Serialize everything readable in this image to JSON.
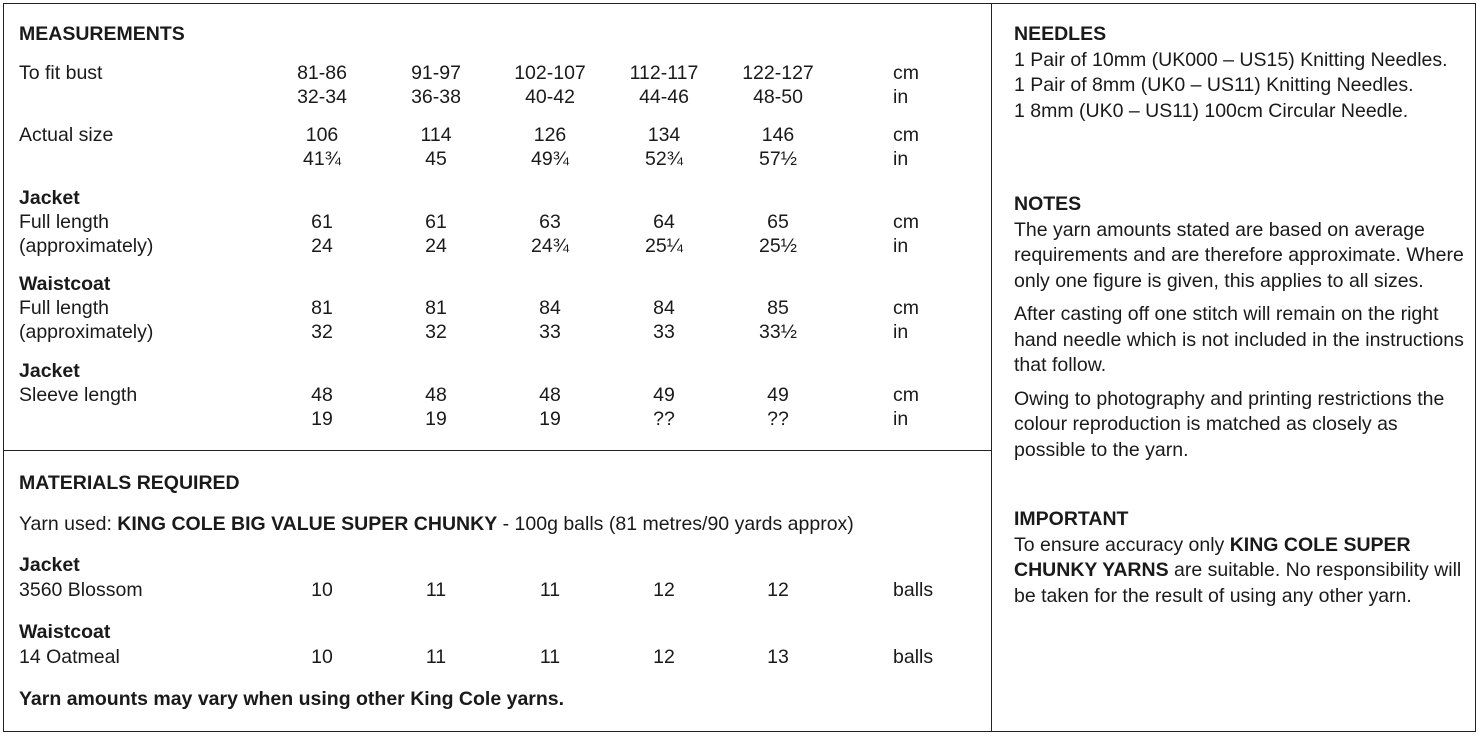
{
  "measurements": {
    "title": "MEASUREMENTS",
    "bust_label": "To fit bust",
    "bust_cm": [
      "81-86",
      "91-97",
      "102-107",
      "112-117",
      "122-127"
    ],
    "bust_in": [
      "32-34",
      "36-38",
      "40-42",
      "44-46",
      "48-50"
    ],
    "actual_label": "Actual size",
    "actual_cm": [
      "106",
      "114",
      "126",
      "134",
      "146"
    ],
    "actual_in": [
      "41¾",
      "45",
      "49¾",
      "52¾",
      "57½"
    ],
    "jacket_heading": "Jacket",
    "jacket_len_label1": "Full length",
    "jacket_len_label2": "(approximately)",
    "jacket_len_cm": [
      "61",
      "61",
      "63",
      "64",
      "65"
    ],
    "jacket_len_in": [
      "24",
      "24",
      "24¾",
      "25¼",
      "25½"
    ],
    "waist_heading": "Waistcoat",
    "waist_len_label1": "Full length",
    "waist_len_label2": "(approximately)",
    "waist_len_cm": [
      "81",
      "81",
      "84",
      "84",
      "85"
    ],
    "waist_len_in": [
      "32",
      "32",
      "33",
      "33",
      "33½"
    ],
    "sleeve_heading": "Jacket",
    "sleeve_label": "Sleeve length",
    "sleeve_cm": [
      "48",
      "48",
      "48",
      "49",
      "49"
    ],
    "sleeve_in": [
      "19",
      "19",
      "19",
      "??",
      "??"
    ],
    "unit_cm": "cm",
    "unit_in": "in"
  },
  "materials": {
    "title": "MATERIALS REQUIRED",
    "yarn_prefix": "Yarn used: ",
    "yarn_name": "KING COLE BIG VALUE SUPER CHUNKY",
    "yarn_suffix": " - 100g balls (81 metres/90 yards approx)",
    "jacket_heading": "Jacket",
    "jacket_colour": "3560 Blossom",
    "jacket_balls": [
      "10",
      "11",
      "11",
      "12",
      "12"
    ],
    "waist_heading": "Waistcoat",
    "waist_colour": "14 Oatmeal",
    "waist_balls": [
      "10",
      "11",
      "11",
      "12",
      "13"
    ],
    "unit_balls": "balls",
    "footnote": "Yarn amounts may vary when using other King Cole yarns."
  },
  "needles": {
    "title": "NEEDLES",
    "line1": "1 Pair of 10mm (UK000 – US15) Knitting Needles.",
    "line2": "1 Pair of 8mm (UK0 – US11) Knitting Needles.",
    "line3": "1 8mm (UK0 – US11) 100cm Circular Needle."
  },
  "notes": {
    "title": "NOTES",
    "p1": "The yarn amounts stated are based on average requirements and are therefore approximate. Where only one figure is given, this applies to all sizes.",
    "p2": "After casting off one stitch will remain on the right hand needle which is not included in the instructions that follow.",
    "p3": "Owing to photography and printing restrictions the colour reproduction is matched as closely as possible to the yarn."
  },
  "important": {
    "title": "IMPORTANT",
    "pre": "To ensure accuracy only ",
    "bold": "KING COLE SUPER CHUNKY YARNS",
    "post": " are suitable. No responsibility will be taken for the result of using any other yarn."
  }
}
